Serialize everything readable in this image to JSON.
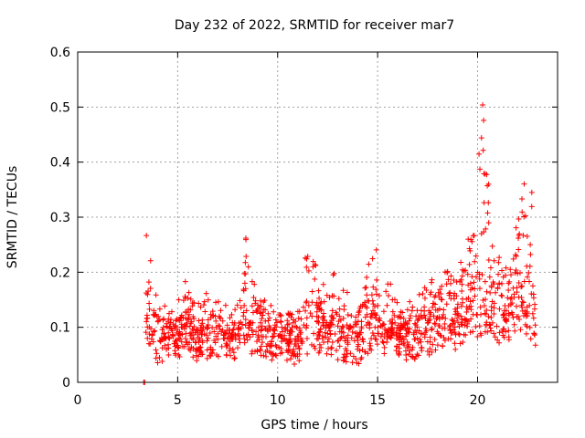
{
  "chart_data": {
    "type": "scatter",
    "title": "Day 232 of 2022, SRMTID for receiver mar7",
    "xlabel": "GPS time / hours",
    "ylabel": "SRMTID / TECUs",
    "xlim": [
      0,
      24
    ],
    "ylim": [
      0,
      0.6
    ],
    "x_ticks": [
      0,
      5,
      10,
      15,
      20
    ],
    "y_ticks": [
      0,
      0.1,
      0.2,
      0.3,
      0.4,
      0.5,
      0.6
    ],
    "x_tick_labels": [
      "0",
      "5",
      "10",
      "15",
      "20"
    ],
    "y_tick_labels": [
      "0",
      "0.1",
      "0.2",
      "0.3",
      "0.4",
      "0.5",
      "0.6"
    ],
    "grid": true,
    "marker": "+",
    "color": "#ff0000",
    "outlier_points": [
      {
        "x": 3.3,
        "y": 0.0
      },
      {
        "x": 3.35,
        "y": 0.0
      }
    ],
    "envelope": [
      {
        "x": 3.4,
        "base": 0.13,
        "spread": 0.14
      },
      {
        "x": 3.6,
        "base": 0.08,
        "spread": 0.16
      },
      {
        "x": 4.0,
        "base": 0.07,
        "spread": 0.06
      },
      {
        "x": 5.0,
        "base": 0.08,
        "spread": 0.06
      },
      {
        "x": 5.5,
        "base": 0.09,
        "spread": 0.1
      },
      {
        "x": 6.0,
        "base": 0.07,
        "spread": 0.05
      },
      {
        "x": 6.8,
        "base": 0.09,
        "spread": 0.1
      },
      {
        "x": 7.5,
        "base": 0.07,
        "spread": 0.04
      },
      {
        "x": 8.3,
        "base": 0.08,
        "spread": 0.08
      },
      {
        "x": 8.4,
        "base": 0.1,
        "spread": 0.18
      },
      {
        "x": 9.0,
        "base": 0.08,
        "spread": 0.06
      },
      {
        "x": 10.0,
        "base": 0.08,
        "spread": 0.05
      },
      {
        "x": 11.0,
        "base": 0.07,
        "spread": 0.05
      },
      {
        "x": 11.6,
        "base": 0.09,
        "spread": 0.21
      },
      {
        "x": 12.0,
        "base": 0.09,
        "spread": 0.07
      },
      {
        "x": 13.0,
        "base": 0.08,
        "spread": 0.1
      },
      {
        "x": 14.0,
        "base": 0.07,
        "spread": 0.05
      },
      {
        "x": 14.9,
        "base": 0.09,
        "spread": 0.16
      },
      {
        "x": 16.0,
        "base": 0.08,
        "spread": 0.06
      },
      {
        "x": 17.0,
        "base": 0.08,
        "spread": 0.06
      },
      {
        "x": 18.0,
        "base": 0.09,
        "spread": 0.1
      },
      {
        "x": 19.0,
        "base": 0.1,
        "spread": 0.1
      },
      {
        "x": 19.8,
        "base": 0.12,
        "spread": 0.18
      },
      {
        "x": 20.2,
        "base": 0.12,
        "spread": 0.45
      },
      {
        "x": 20.7,
        "base": 0.1,
        "spread": 0.15
      },
      {
        "x": 21.5,
        "base": 0.11,
        "spread": 0.1
      },
      {
        "x": 22.3,
        "base": 0.12,
        "spread": 0.25
      },
      {
        "x": 22.6,
        "base": 0.11,
        "spread": 0.42
      },
      {
        "x": 22.9,
        "base": 0.09,
        "spread": 0.08
      }
    ],
    "x_start": 3.4,
    "x_end": 22.9,
    "n_points": 1400
  }
}
